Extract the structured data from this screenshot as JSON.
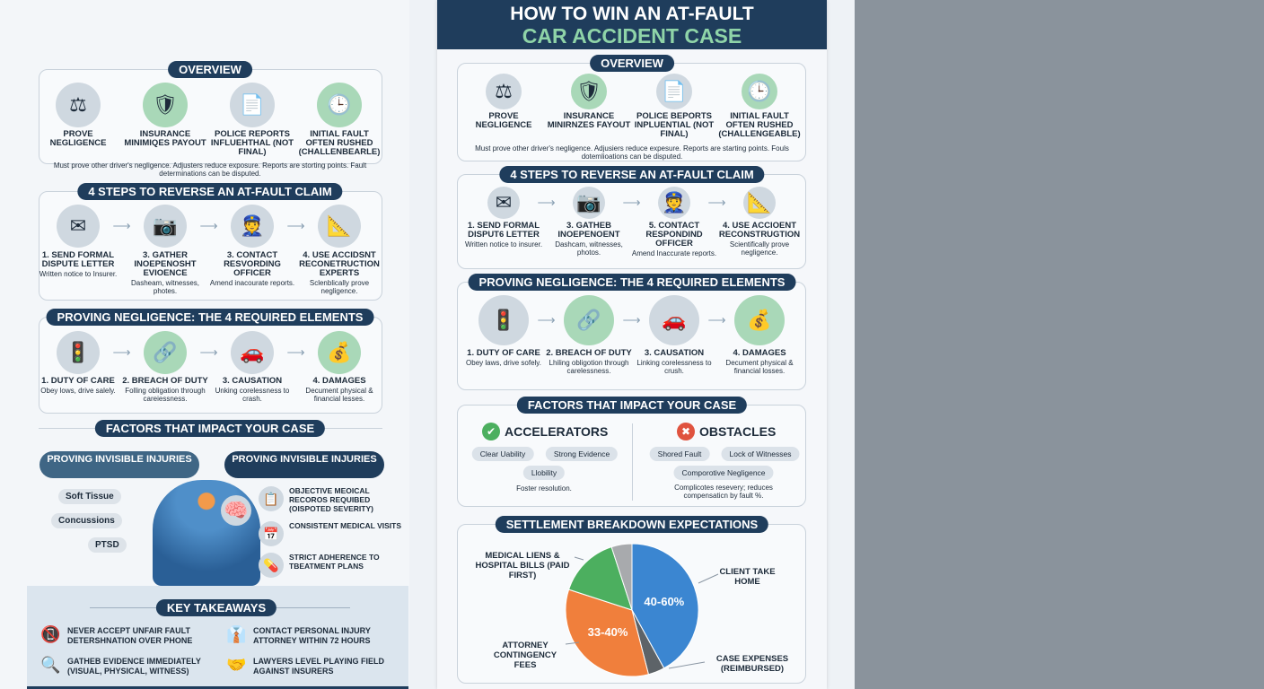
{
  "title": {
    "line1": "HOW TO WIN AN AT-FAULT",
    "line2": "CAR ACCIDENT CASE"
  },
  "colors": {
    "navy": "#1f3d5c",
    "green_accent": "#8fd4a8",
    "blue": "#3b86d1",
    "orange": "#f07f3c",
    "green": "#4caf5f",
    "gray": "#a8aaad",
    "dark_gray": "#5d6368"
  },
  "left": {
    "overview": {
      "heading": "OVERVIEW",
      "items": [
        {
          "icon": "scales-icon",
          "label": "PROVE NEGLIGENCE"
        },
        {
          "icon": "shield-icon",
          "label": "INSURANCE MINIMIQES PAYOUT"
        },
        {
          "icon": "document-icon",
          "label": "POLICE REPORTS INFLUEHTHAL (NOT FINAL)"
        },
        {
          "icon": "clock-icon",
          "label": "INITIAL FAULT OFTEN RUSHED (CHALLENBEARLE)"
        }
      ],
      "caption": "Must prove other driver's negligence. Adjusters reduce exposure. Reports are storting points. Fault determinations can be disputed."
    },
    "steps": {
      "heading": "4 STEPS TO REVERSE AN AT-FAULT CLAIM",
      "items": [
        {
          "icon": "envelope-icon",
          "label": "1. SEND FORMAL DISPUTE LETTER",
          "desc": "Written notice to Insurer."
        },
        {
          "icon": "camera-icon",
          "label": "3. GATHER INOEPENOSHT EVIOENCE",
          "desc": "Dasheam, witnesses, photes."
        },
        {
          "icon": "officer-icon",
          "label": "3. CONTACT RESVORDING OFFICER",
          "desc": "Amend inacourate reports."
        },
        {
          "icon": "blueprint-icon",
          "label": "4. USE ACCIDSNT RECONETRUCTION EXPERTS",
          "desc": "Sclenblically prove negligence."
        }
      ]
    },
    "negligence": {
      "heading": "PROVING NEGLIGENCE: THE 4 REQUIRED ELEMENTS",
      "items": [
        {
          "icon": "traffic-light-icon",
          "label": "1. DUTY OF CARE",
          "desc": "Obey lows, drive salely."
        },
        {
          "icon": "broken-chain-icon",
          "label": "2. BREACH OF DUTY",
          "desc": "Folling obligation through careiessness."
        },
        {
          "icon": "car-crash-icon",
          "label": "3. CAUSATION",
          "desc": "Unking corelessness to crash."
        },
        {
          "icon": "money-bag-icon",
          "label": "4. DAMAGES",
          "desc": "Decument physical & financial lesses."
        }
      ]
    },
    "factors": {
      "heading": "FACTORS THAT IMPACT YOUR CASE",
      "pill_left": "PROVING INVISIBLE INJURIES",
      "pill_right": "PROVING INVISIBLE INJURIES",
      "tags": [
        "Soft Tissue",
        "Concussions",
        "PTSD"
      ],
      "list": [
        {
          "icon": "clipboard-icon",
          "text": "OBJECTIVE MEOICAL RECOROS REQUIBED (OISPOTED SEVERITY)"
        },
        {
          "icon": "calendar-icon",
          "text": "CONSISTENT MEDICAL VISITS"
        },
        {
          "icon": "pill-bottle-icon",
          "text": "STRICT ADHERENCE TO TBEATMENT PLANS"
        }
      ]
    },
    "takeaways": {
      "heading": "KEY TAKEAWAYS",
      "items": [
        {
          "icon": "no-phone-icon",
          "text": "NEVER ACCEPT UNFAIR FAULT DETERSHNATION OVER PHONE"
        },
        {
          "icon": "attorney-icon",
          "text": "CONTACT PERSONAL INJURY ATTORNEY WITHIN 72 HOURS"
        },
        {
          "icon": "magnifier-icon",
          "text": "GATHEB EVIDENCE IMMEDIATELY (VISUAL, PHYSICAL, WITNESS)"
        },
        {
          "icon": "handshake-icon",
          "text": "LAWYERS LEVEL PLAYING FIELD AGAINST INSURERS"
        }
      ]
    }
  },
  "mid": {
    "overview": {
      "heading": "OVERVIEW",
      "items": [
        {
          "icon": "scales-icon",
          "label": "PROVE NEGLIGENCE"
        },
        {
          "icon": "shield-icon",
          "label": "INSURANCE MINIRNZES FAYOUT"
        },
        {
          "icon": "document-icon",
          "label": "POLICE BEPORTS INPLUENTIAL (NOT FINAL)"
        },
        {
          "icon": "clock-icon",
          "label": "INITIAL FAULT OFTEN RUSHED (CHALLENGEABLE)"
        }
      ],
      "caption": "Must prove other driver's negligence. Adjusiers reduce expesure. Reports are starting points. Fouls dotemlioations can be disputed."
    },
    "steps": {
      "heading": "4 STEPS TO REVERSE AN AT-FAULT CLAIM",
      "items": [
        {
          "icon": "envelope-icon",
          "label": "1. SEND FORMAL DISPUT6 LETTER",
          "desc": "Written notice to insurer."
        },
        {
          "icon": "camera-icon",
          "label": "3. GATHEB INOEPENOENT",
          "desc": "Dashcam, witnesses, photos."
        },
        {
          "icon": "officer-icon",
          "label": "5. CONTACT RESPONDIND OFFICER",
          "desc": "Amend Inaccurate reports."
        },
        {
          "icon": "blueprint-icon",
          "label": "4. USE ACCIOENT RECONSTRUGTION",
          "desc": "Scientifically prove negligence."
        }
      ]
    },
    "negligence": {
      "heading": "PROVING NEGLIGENCE: THE 4 REQUIRED ELEMENTS",
      "items": [
        {
          "icon": "traffic-light-icon",
          "label": "1. DUTY OF CARE",
          "desc": "Obey laws, drive sofely."
        },
        {
          "icon": "broken-chain-icon",
          "label": "2. BREACH OF DUTY",
          "desc": "Lhiling obligotion through carelessness."
        },
        {
          "icon": "car-crash-icon",
          "label": "3. CAUSATION",
          "desc": "Linking corelessness to crush."
        },
        {
          "icon": "money-bag-icon",
          "label": "4. DAMAGES",
          "desc": "Decument physical & financial losses."
        }
      ]
    },
    "factors": {
      "heading": "FACTORS THAT IMPACT YOUR CASE",
      "accelerators": {
        "title": "ACCELERATORS",
        "icon": "check-circle-icon",
        "chips": [
          "Clear Uability",
          "Strong Evidence",
          "Llobility"
        ],
        "caption": "Foster resolution."
      },
      "obstacles": {
        "title": "OBSTACLES",
        "icon": "x-circle-icon",
        "chips": [
          "Shored Fault",
          "Lock of Witnesses",
          "Comporotive Negligence"
        ],
        "caption": "Complicotes resevery; reduces compensaticn by fault %."
      }
    },
    "settlement": {
      "heading": "SETTLEMENT BREAKDOWN EXPECTATIONS"
    }
  },
  "chart_data": {
    "type": "pie",
    "title": "SETTLEMENT BREAKDOWN EXPECTATIONS",
    "slices": [
      {
        "label": "CLIENT TAKE HOME",
        "value": 42,
        "data_label": "40-60%",
        "color": "#3b86d1"
      },
      {
        "label": "CASE EXPENSES (REIMBURSED)",
        "value": 4,
        "data_label": "",
        "color": "#5d6368"
      },
      {
        "label": "ATTORNEY CONTINGENCY FEES",
        "value": 34,
        "data_label": "33-40%",
        "color": "#f07f3c"
      },
      {
        "label": "MEDICAL LIENS & HOSPITAL BILLS (PAID FIRST)",
        "value": 15,
        "data_label": "",
        "color": "#4caf5f"
      },
      {
        "label": "",
        "value": 5,
        "data_label": "",
        "color": "#a8aaad"
      }
    ]
  }
}
